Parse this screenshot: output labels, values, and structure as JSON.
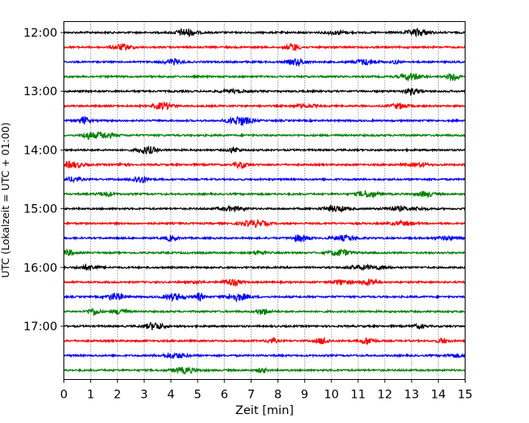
{
  "chart_data": {
    "type": "line",
    "title": "",
    "xlabel": "Zeit  [min]",
    "ylabel": "UTC (Lokalzeit = UTC + 01:00)",
    "xlim": [
      0,
      15
    ],
    "x_ticks": [
      "0",
      "1",
      "2",
      "3",
      "4",
      "5",
      "6",
      "7",
      "8",
      "9",
      "10",
      "11",
      "12",
      "13",
      "14",
      "15"
    ],
    "y_ticks": [
      "12:00",
      "13:00",
      "14:00",
      "15:00",
      "16:00",
      "17:00"
    ],
    "y_tick_rows": [
      0,
      4,
      8,
      12,
      16,
      20
    ],
    "row_count": 24,
    "row_start": "12:00",
    "row_interval_minutes": 15,
    "grid": "vertical dotted at each minute",
    "colors": [
      "#000000",
      "#ff0000",
      "#0000ff",
      "#007f00"
    ],
    "series_note": "24 helicorder traces (15 min each), colors cycle black, red, blue, green"
  }
}
